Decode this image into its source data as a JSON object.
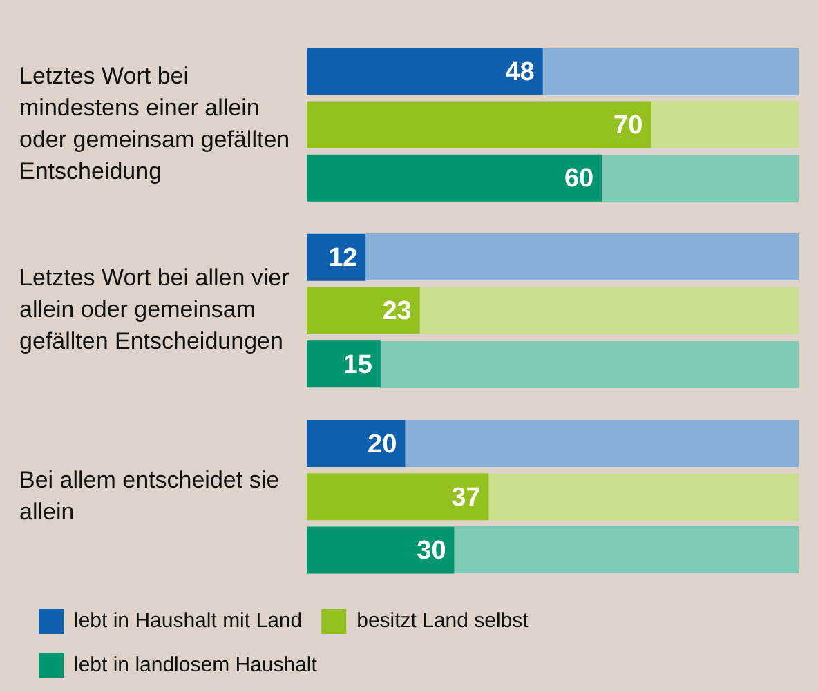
{
  "chart_data": {
    "type": "bar",
    "orientation": "horizontal",
    "categories": [
      "Letztes Wort bei mindestens einer allein oder gemeinsam gefällten Entscheidung",
      "Letztes Wort bei allen vier allein oder gemeinsam gefällten Entscheidungen",
      "Bei allem entscheidet sie allein"
    ],
    "series": [
      {
        "name": "lebt in Haushalt mit Land",
        "color": "#0e5fae",
        "values": [
          48,
          12,
          20
        ]
      },
      {
        "name": "besitzt Land selbst",
        "color": "#95c11f",
        "values": [
          70,
          23,
          37
        ]
      },
      {
        "name": "lebt in landlosem Haushalt",
        "color": "#009670",
        "values": [
          60,
          15,
          30
        ]
      }
    ],
    "xlim": [
      0,
      100
    ],
    "tick_labels": "y",
    "grid": false,
    "legend": "bottom",
    "data_labels": true
  }
}
